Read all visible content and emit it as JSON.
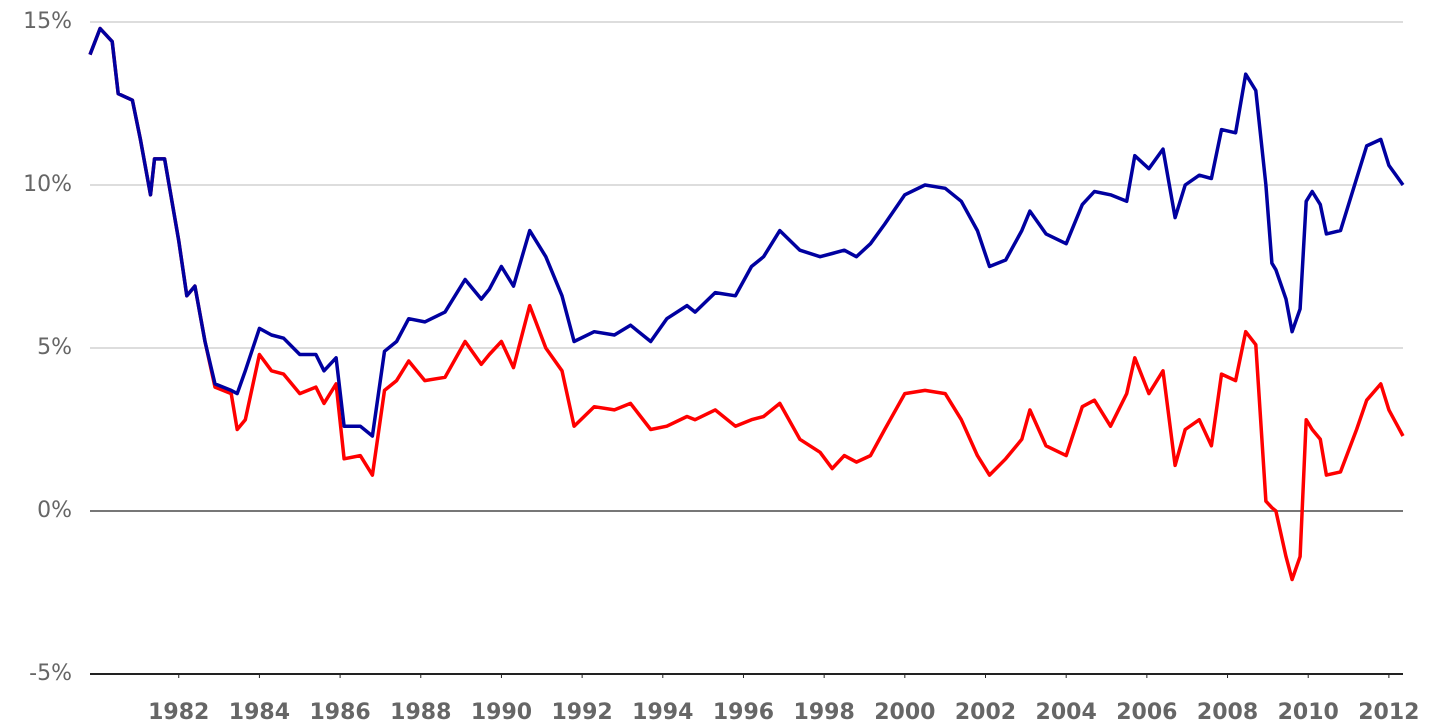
{
  "chart_data": {
    "type": "line",
    "x": [
      1979.8,
      1980.05,
      1980.35,
      1980.5,
      1980.85,
      1981.05,
      1981.3,
      1981.4,
      1981.65,
      1982.0,
      1982.2,
      1982.4,
      1982.65,
      1982.9,
      1983.3,
      1983.45,
      1983.65,
      1984.0,
      1984.3,
      1984.6,
      1985.0,
      1985.4,
      1985.6,
      1985.9,
      1986.1,
      1986.5,
      1986.8,
      1987.1,
      1987.4,
      1987.7,
      1988.1,
      1988.6,
      1989.1,
      1989.5,
      1989.7,
      1990.0,
      1990.3,
      1990.7,
      1991.1,
      1991.5,
      1991.8,
      1992.3,
      1992.8,
      1993.2,
      1993.7,
      1994.1,
      1994.6,
      1994.8,
      1995.3,
      1995.8,
      1996.2,
      1996.5,
      1996.9,
      1997.4,
      1997.9,
      1998.2,
      1998.5,
      1998.8,
      1999.15,
      1999.5,
      2000.0,
      2000.5,
      2001.0,
      2001.4,
      2001.8,
      2002.1,
      2002.5,
      2002.9,
      2003.1,
      2003.5,
      2004.0,
      2004.4,
      2004.7,
      2005.1,
      2005.5,
      2005.7,
      2006.05,
      2006.4,
      2006.7,
      2006.95,
      2007.3,
      2007.6,
      2007.85,
      2008.2,
      2008.45,
      2008.7,
      2008.95,
      2009.1,
      2009.2,
      2009.45,
      2009.6,
      2009.8,
      2009.95,
      2010.1,
      2010.3,
      2010.45,
      2010.8,
      2011.2,
      2011.45,
      2011.8,
      2012.0,
      2012.35
    ],
    "series": [
      {
        "color": "#0000a0",
        "values": [
          14.0,
          14.8,
          14.4,
          12.8,
          12.6,
          11.4,
          9.7,
          10.8,
          10.8,
          8.3,
          6.6,
          6.9,
          5.2,
          3.9,
          3.7,
          3.6,
          4.3,
          5.6,
          5.4,
          5.3,
          4.8,
          4.8,
          4.3,
          4.7,
          2.6,
          2.6,
          2.3,
          4.9,
          5.2,
          5.9,
          5.8,
          6.1,
          7.1,
          6.5,
          6.8,
          7.5,
          6.9,
          8.6,
          7.8,
          6.6,
          5.2,
          5.5,
          5.4,
          5.7,
          5.2,
          5.9,
          6.3,
          6.1,
          6.7,
          6.6,
          7.5,
          7.8,
          8.6,
          8.0,
          7.8,
          7.9,
          8.0,
          7.8,
          8.2,
          8.8,
          9.7,
          10.0,
          9.9,
          9.5,
          8.6,
          7.5,
          7.7,
          8.6,
          9.2,
          8.5,
          8.2,
          9.4,
          9.8,
          9.7,
          9.5,
          10.9,
          10.5,
          11.1,
          9.0,
          10.0,
          10.3,
          10.2,
          11.7,
          11.6,
          13.4,
          12.9,
          10.0,
          7.6,
          7.4,
          6.5,
          5.5,
          6.2,
          9.5,
          9.8,
          9.4,
          8.5,
          8.6,
          10.2,
          11.2,
          11.4,
          10.6,
          10.0
        ]
      },
      {
        "color": "#ff0000",
        "values": [
          14.0,
          14.8,
          14.4,
          12.8,
          12.6,
          11.4,
          9.7,
          10.8,
          10.8,
          8.3,
          6.6,
          6.9,
          5.2,
          3.8,
          3.6,
          2.5,
          2.8,
          4.8,
          4.3,
          4.2,
          3.6,
          3.8,
          3.3,
          3.9,
          1.6,
          1.7,
          1.1,
          3.7,
          4.0,
          4.6,
          4.0,
          4.1,
          5.2,
          4.5,
          4.8,
          5.2,
          4.4,
          6.3,
          5.0,
          4.3,
          2.6,
          3.2,
          3.1,
          3.3,
          2.5,
          2.6,
          2.9,
          2.8,
          3.1,
          2.6,
          2.8,
          2.9,
          3.3,
          2.2,
          1.8,
          1.3,
          1.7,
          1.5,
          1.7,
          2.5,
          3.6,
          3.7,
          3.6,
          2.8,
          1.7,
          1.1,
          1.6,
          2.2,
          3.1,
          2.0,
          1.7,
          3.2,
          3.4,
          2.6,
          3.6,
          4.7,
          3.6,
          4.3,
          1.4,
          2.5,
          2.8,
          2.0,
          4.2,
          4.0,
          5.5,
          5.1,
          0.3,
          0.1,
          0.0,
          -1.4,
          -2.1,
          -1.4,
          2.8,
          2.5,
          2.2,
          1.1,
          1.2,
          2.5,
          3.4,
          3.9,
          3.1,
          2.3
        ]
      }
    ],
    "xlim": [
      1979.8,
      2012.35
    ],
    "xticks": [
      1982,
      1984,
      1986,
      1988,
      1990,
      1992,
      1994,
      1996,
      1998,
      2000,
      2002,
      2004,
      2006,
      2008,
      2010,
      2012
    ],
    "ylim": [
      -5,
      15
    ],
    "yticks": [
      {
        "value": -5,
        "label": "-5%"
      },
      {
        "value": 0,
        "label": "0%"
      },
      {
        "value": 5,
        "label": "5%"
      },
      {
        "value": 10,
        "label": "10%"
      },
      {
        "value": 15,
        "label": "15%"
      }
    ],
    "grid": true
  }
}
